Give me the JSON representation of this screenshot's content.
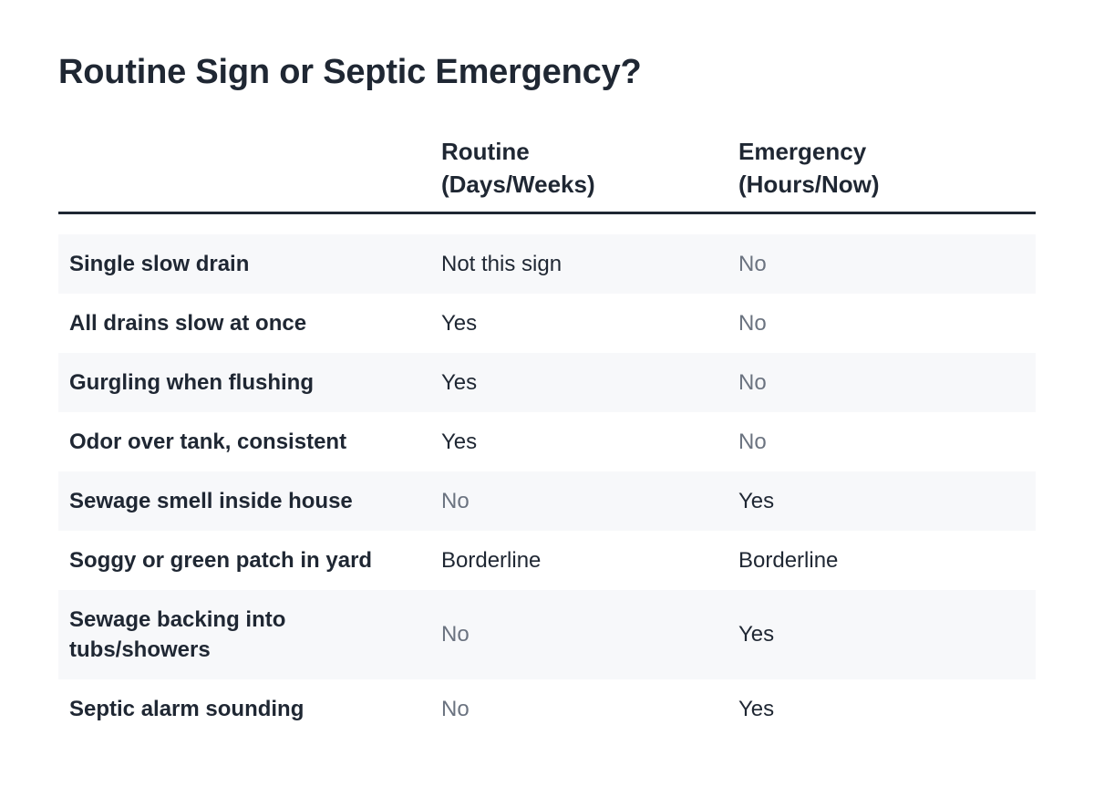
{
  "title": "Routine Sign or Septic Emergency?",
  "columns": {
    "routine": {
      "line1": "Routine",
      "line2": "(Days/Weeks)"
    },
    "emergency": {
      "line1": "Emergency",
      "line2": "(Hours/Now)"
    }
  },
  "colors": {
    "text": "#1f2733",
    "muted": "#6b7380",
    "row_shade": "#f7f8fa"
  },
  "rows": [
    {
      "sign": "Single slow drain",
      "routine": "Not this sign",
      "emergency": "No"
    },
    {
      "sign": "All drains slow at once",
      "routine": "Yes",
      "emergency": "No"
    },
    {
      "sign": "Gurgling when flushing",
      "routine": "Yes",
      "emergency": "No"
    },
    {
      "sign": "Odor over tank, consistent",
      "routine": "Yes",
      "emergency": "No"
    },
    {
      "sign": "Sewage smell inside house",
      "routine": "No",
      "emergency": "Yes"
    },
    {
      "sign": "Soggy or green patch in yard",
      "routine": "Borderline",
      "emergency": "Borderline"
    },
    {
      "sign": "Sewage backing into tubs/showers",
      "routine": "No",
      "emergency": "Yes"
    },
    {
      "sign": "Septic alarm sounding",
      "routine": "No",
      "emergency": "Yes"
    }
  ]
}
